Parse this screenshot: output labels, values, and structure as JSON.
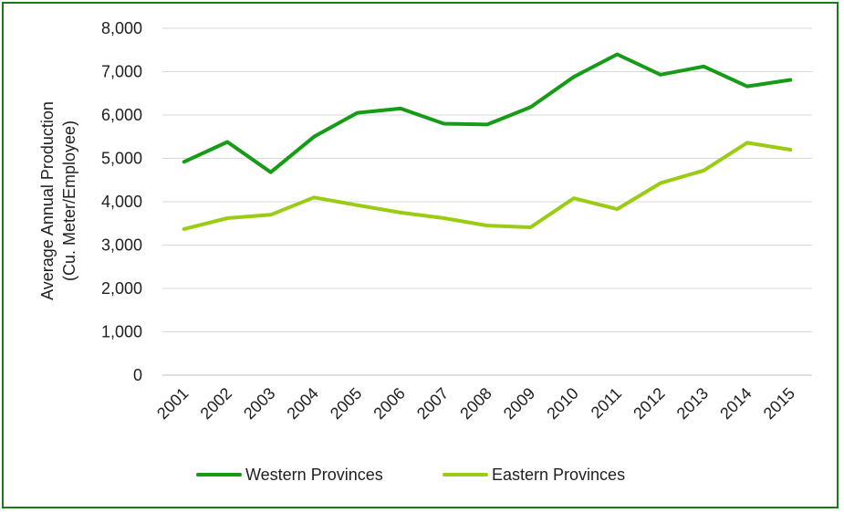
{
  "chart_data": {
    "type": "line",
    "title": "",
    "ylabel_line1": "Average Annual Production",
    "ylabel_line2": "(Cu. Meter/Employee)",
    "xlabel": "",
    "categories": [
      "2001",
      "2002",
      "2003",
      "2004",
      "2005",
      "2006",
      "2007",
      "2008",
      "2009",
      "2010",
      "2011",
      "2012",
      "2013",
      "2014",
      "2015"
    ],
    "ylim": [
      0,
      8000
    ],
    "yticks": [
      0,
      1000,
      2000,
      3000,
      4000,
      5000,
      6000,
      7000,
      8000
    ],
    "ytick_labels": [
      "0",
      "1,000",
      "2,000",
      "3,000",
      "4,000",
      "5,000",
      "6,000",
      "7,000",
      "8,000"
    ],
    "grid": true,
    "legend_position": "bottom",
    "series": [
      {
        "name": "Western Provinces",
        "color": "#159b15",
        "values": [
          4920,
          5380,
          4680,
          5500,
          6050,
          6150,
          5800,
          5780,
          6180,
          6880,
          7400,
          6930,
          7120,
          6660,
          6810
        ]
      },
      {
        "name": "Eastern Provinces",
        "color": "#99cc12",
        "values": [
          3370,
          3620,
          3700,
          4100,
          3920,
          3750,
          3620,
          3450,
          3410,
          4080,
          3830,
          4430,
          4720,
          5360,
          5200
        ]
      }
    ]
  }
}
